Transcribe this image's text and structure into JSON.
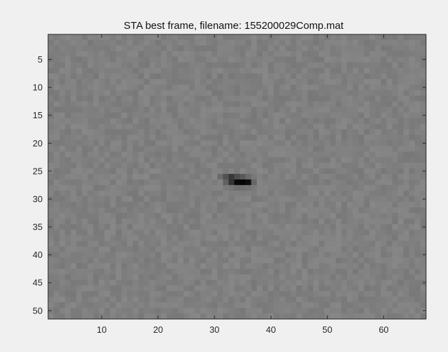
{
  "figure": {
    "background": "#f0f0f0"
  },
  "chart_data": {
    "type": "heatmap",
    "title": "STA best frame, filename: 155200029Comp.mat",
    "xlabel": "",
    "ylabel": "",
    "colormap": "gray",
    "grid": false,
    "xlim": [
      0.5,
      67.5
    ],
    "ylim": [
      0.5,
      51.5
    ],
    "y_direction": "reverse",
    "x_ticks": [
      10,
      20,
      30,
      40,
      50,
      60
    ],
    "y_ticks": [
      5,
      10,
      15,
      20,
      25,
      30,
      35,
      40,
      45,
      50
    ],
    "columns": 67,
    "rows": 51,
    "background_level": 0.5,
    "background_noise": 0.03,
    "features": [
      {
        "x": 31,
        "y": 26,
        "level": 0.42
      },
      {
        "x": 32,
        "y": 26,
        "level": 0.32
      },
      {
        "x": 33,
        "y": 26,
        "level": 0.22
      },
      {
        "x": 34,
        "y": 26,
        "level": 0.3
      },
      {
        "x": 35,
        "y": 26,
        "level": 0.35
      },
      {
        "x": 36,
        "y": 26,
        "level": 0.42
      },
      {
        "x": 37,
        "y": 26,
        "level": 0.47
      },
      {
        "x": 32,
        "y": 27,
        "level": 0.38
      },
      {
        "x": 33,
        "y": 27,
        "level": 0.2
      },
      {
        "x": 34,
        "y": 27,
        "level": 0.04
      },
      {
        "x": 35,
        "y": 27,
        "level": 0.02
      },
      {
        "x": 36,
        "y": 27,
        "level": 0.05
      },
      {
        "x": 37,
        "y": 27,
        "level": 0.4
      },
      {
        "x": 33,
        "y": 28,
        "level": 0.46
      },
      {
        "x": 34,
        "y": 28,
        "level": 0.43
      },
      {
        "x": 35,
        "y": 28,
        "level": 0.44
      },
      {
        "x": 36,
        "y": 28,
        "level": 0.45
      }
    ]
  }
}
